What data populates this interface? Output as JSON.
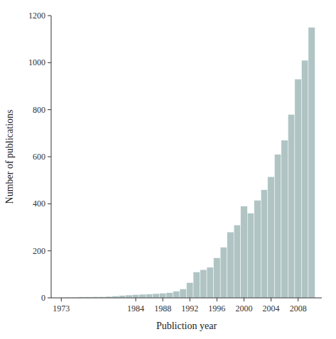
{
  "chart_data": {
    "type": "bar",
    "xlabel": "Publiction year",
    "ylabel": "Number of publications",
    "x": [
      1973,
      1974,
      1975,
      1976,
      1977,
      1978,
      1979,
      1980,
      1981,
      1982,
      1983,
      1984,
      1985,
      1986,
      1987,
      1988,
      1989,
      1990,
      1991,
      1992,
      1993,
      1994,
      1995,
      1996,
      1997,
      1998,
      1999,
      2000,
      2001,
      2002,
      2003,
      2004,
      2005,
      2006,
      2007,
      2008,
      2009,
      2010
    ],
    "values": [
      2,
      3,
      3,
      4,
      4,
      5,
      5,
      6,
      8,
      10,
      12,
      14,
      15,
      16,
      18,
      20,
      22,
      28,
      38,
      65,
      110,
      120,
      130,
      170,
      215,
      280,
      310,
      390,
      360,
      415,
      460,
      515,
      610,
      670,
      780,
      930,
      1010,
      1150
    ],
    "color": "#b0c4c4",
    "xlim": [
      1971.5,
      2011.5
    ],
    "xticks": [
      1973,
      1984,
      1988,
      1992,
      1996,
      2000,
      2004,
      2008
    ],
    "ylim": [
      0,
      1200
    ],
    "yticks": [
      0,
      200,
      400,
      600,
      800,
      1000,
      1200
    ],
    "grid": false
  }
}
